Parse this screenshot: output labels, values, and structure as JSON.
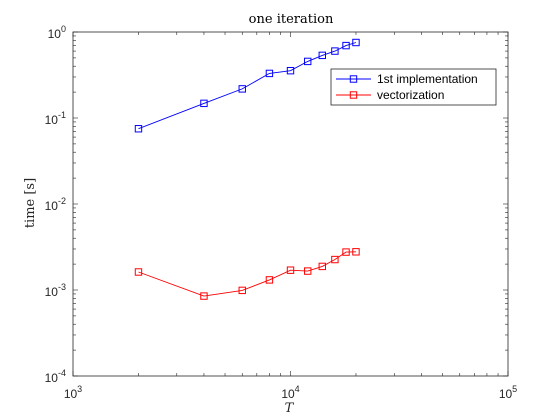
{
  "chart_data": {
    "type": "line",
    "title": "one iteration",
    "xlabel": "T",
    "ylabel": "time [s]",
    "x_scale": "log",
    "y_scale": "log",
    "xlim": [
      1000,
      100000
    ],
    "ylim": [
      0.0001,
      1
    ],
    "x_ticks": [
      {
        "value": 1000,
        "base": "10",
        "exp": "3"
      },
      {
        "value": 10000,
        "base": "10",
        "exp": "4"
      },
      {
        "value": 100000,
        "base": "10",
        "exp": "5"
      }
    ],
    "y_ticks": [
      {
        "value": 0.0001,
        "base": "10",
        "exp": "-4"
      },
      {
        "value": 0.001,
        "base": "10",
        "exp": "-3"
      },
      {
        "value": 0.01,
        "base": "10",
        "exp": "-2"
      },
      {
        "value": 0.1,
        "base": "10",
        "exp": "-1"
      },
      {
        "value": 1,
        "base": "10",
        "exp": "0"
      }
    ],
    "grid": false,
    "legend_position": "top-right",
    "series": [
      {
        "name": "1st implementation",
        "color": "#0000ff",
        "marker": "square",
        "x": [
          2000,
          4000,
          6000,
          8000,
          10000,
          12000,
          14000,
          16000,
          18000,
          20000
        ],
        "y": [
          0.075,
          0.148,
          0.218,
          0.33,
          0.355,
          0.455,
          0.535,
          0.6,
          0.695,
          0.755
        ]
      },
      {
        "name": "vectorization",
        "color": "#ff0000",
        "marker": "square",
        "x": [
          2000,
          4000,
          6000,
          8000,
          10000,
          12000,
          14000,
          16000,
          18000,
          20000
        ],
        "y": [
          0.00162,
          0.00085,
          0.00099,
          0.00131,
          0.0017,
          0.00166,
          0.00188,
          0.00226,
          0.00276,
          0.00278
        ]
      }
    ]
  }
}
